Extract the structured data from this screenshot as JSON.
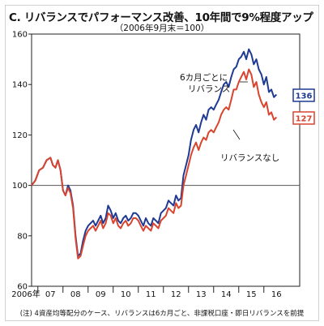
{
  "title": "C. リバランスでパフォーマンス改善、10年間で9%程度アップ",
  "subtitle": "（2006年9月末＝100）",
  "note": "(注) 4資産均等配分のケース、リバランスは6カ月ごと、非課税口座・即日リバランスを前提",
  "chart_data": {
    "type": "line",
    "title": "C. リバランスでパフォーマンス改善、10年間で9%程度アップ",
    "subtitle": "（2006年9月末＝100）",
    "ylim": [
      60,
      160
    ],
    "y_ticks": [
      60,
      80,
      100,
      120,
      140,
      160
    ],
    "x_ticks": [
      "2006年",
      "07",
      "08",
      "09",
      "10",
      "11",
      "12",
      "13",
      "14",
      "15",
      "16"
    ],
    "xlim": [
      2006.75,
      2016.8
    ],
    "reference_line": 100,
    "colors": {
      "rebalance": "#1f3a93",
      "no_rebalance": "#d9442e",
      "reference": "#555555"
    },
    "series": [
      {
        "name": "6カ月ごとにリバランス",
        "end_label": "136",
        "x": [
          2006.75,
          2006.9,
          2007.05,
          2007.2,
          2007.35,
          2007.5,
          2007.6,
          2007.7,
          2007.8,
          2007.9,
          2008.0,
          2008.1,
          2008.2,
          2008.3,
          2008.4,
          2008.5,
          2008.55,
          2008.6,
          2008.7,
          2008.8,
          2008.9,
          2009.0,
          2009.1,
          2009.2,
          2009.3,
          2009.4,
          2009.5,
          2009.6,
          2009.7,
          2009.8,
          2009.9,
          2010.0,
          2010.1,
          2010.2,
          2010.3,
          2010.4,
          2010.5,
          2010.6,
          2010.7,
          2010.8,
          2010.9,
          2011.0,
          2011.1,
          2011.2,
          2011.3,
          2011.4,
          2011.5,
          2011.6,
          2011.7,
          2011.8,
          2011.9,
          2012.0,
          2012.1,
          2012.2,
          2012.3,
          2012.4,
          2012.5,
          2012.6,
          2012.7,
          2012.8,
          2012.9,
          2013.0,
          2013.1,
          2013.2,
          2013.3,
          2013.4,
          2013.5,
          2013.6,
          2013.7,
          2013.8,
          2013.9,
          2014.0,
          2014.1,
          2014.2,
          2014.3,
          2014.4,
          2014.5,
          2014.6,
          2014.7,
          2014.8,
          2014.9,
          2015.0,
          2015.1,
          2015.2,
          2015.3,
          2015.4,
          2015.5,
          2015.6,
          2015.7,
          2015.8,
          2015.9,
          2016.0,
          2016.1,
          2016.2,
          2016.3,
          2016.4,
          2016.5
        ],
        "values": [
          100,
          102,
          106,
          107,
          110,
          111,
          108,
          107,
          110,
          106,
          98,
          96,
          100,
          98,
          92,
          80,
          76,
          72,
          73,
          78,
          82,
          84,
          85,
          86,
          84,
          86,
          88,
          85,
          87,
          92,
          90,
          87,
          89,
          86,
          85,
          87,
          88,
          86,
          87,
          89,
          89,
          88,
          86,
          84,
          87,
          85,
          84,
          87,
          86,
          85,
          89,
          90,
          91,
          94,
          93,
          92,
          96,
          94,
          95,
          104,
          108,
          112,
          118,
          122,
          124,
          121,
          125,
          128,
          126,
          130,
          131,
          130,
          132,
          134,
          137,
          140,
          141,
          139,
          143,
          146,
          147,
          150,
          151,
          153,
          150,
          154,
          152,
          148,
          150,
          146,
          144,
          140,
          143,
          137,
          138,
          135,
          136
        ]
      },
      {
        "name": "リバランスなし",
        "end_label": "127",
        "x": [
          2006.75,
          2006.9,
          2007.05,
          2007.2,
          2007.35,
          2007.5,
          2007.6,
          2007.7,
          2007.8,
          2007.9,
          2008.0,
          2008.1,
          2008.2,
          2008.3,
          2008.4,
          2008.5,
          2008.55,
          2008.6,
          2008.7,
          2008.8,
          2008.9,
          2009.0,
          2009.1,
          2009.2,
          2009.3,
          2009.4,
          2009.5,
          2009.6,
          2009.7,
          2009.8,
          2009.9,
          2010.0,
          2010.1,
          2010.2,
          2010.3,
          2010.4,
          2010.5,
          2010.6,
          2010.7,
          2010.8,
          2010.9,
          2011.0,
          2011.1,
          2011.2,
          2011.3,
          2011.4,
          2011.5,
          2011.6,
          2011.7,
          2011.8,
          2011.9,
          2012.0,
          2012.1,
          2012.2,
          2012.3,
          2012.4,
          2012.5,
          2012.6,
          2012.7,
          2012.8,
          2012.9,
          2013.0,
          2013.1,
          2013.2,
          2013.3,
          2013.4,
          2013.5,
          2013.6,
          2013.7,
          2013.8,
          2013.9,
          2014.0,
          2014.1,
          2014.2,
          2014.3,
          2014.4,
          2014.5,
          2014.6,
          2014.7,
          2014.8,
          2014.9,
          2015.0,
          2015.1,
          2015.2,
          2015.3,
          2015.4,
          2015.5,
          2015.6,
          2015.7,
          2015.8,
          2015.9,
          2016.0,
          2016.1,
          2016.2,
          2016.3,
          2016.4,
          2016.5
        ],
        "values": [
          100,
          102,
          106,
          107,
          110,
          111,
          108,
          107,
          110,
          106,
          98,
          96,
          99,
          97,
          91,
          79,
          75,
          71,
          72,
          76,
          80,
          82,
          83,
          84,
          82,
          84,
          86,
          83,
          85,
          89,
          88,
          85,
          87,
          84,
          83,
          85,
          86,
          84,
          85,
          87,
          87,
          86,
          84,
          82,
          84,
          83,
          82,
          85,
          84,
          83,
          86,
          87,
          88,
          91,
          90,
          89,
          93,
          91,
          92,
          100,
          104,
          108,
          112,
          115,
          117,
          114,
          117,
          119,
          118,
          121,
          122,
          121,
          123,
          125,
          128,
          130,
          131,
          130,
          134,
          138,
          138,
          141,
          143,
          145,
          142,
          146,
          144,
          139,
          141,
          136,
          133,
          131,
          133,
          128,
          129,
          126,
          127
        ]
      }
    ],
    "annotations": [
      {
        "text": "6カ月ごとに",
        "series": 0
      },
      {
        "text": "リバランス",
        "series": 0
      },
      {
        "text": "リバランスなし",
        "series": 1
      }
    ]
  }
}
